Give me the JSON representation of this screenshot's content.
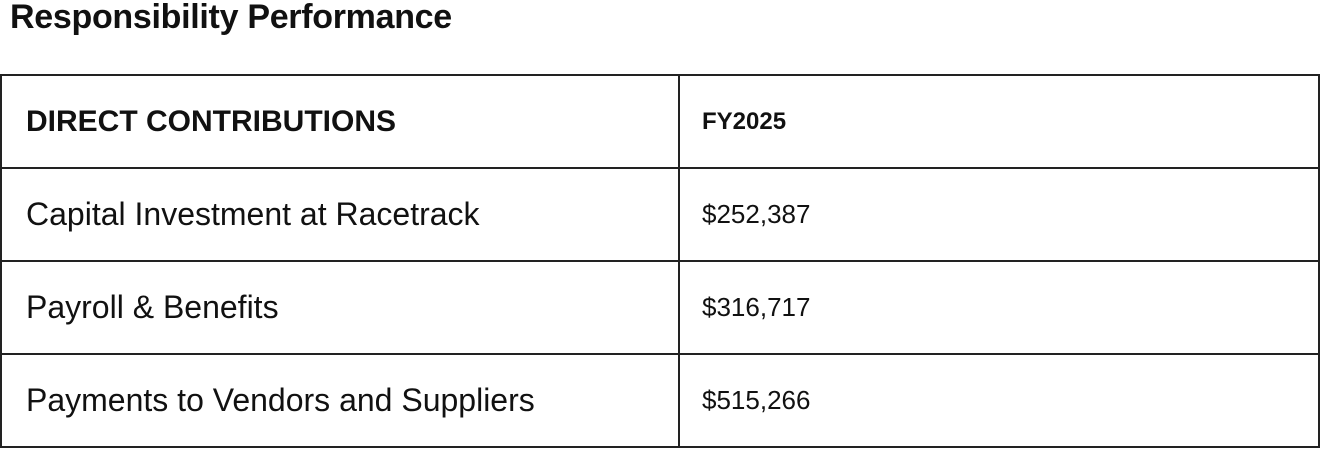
{
  "title": "Responsibility Performance",
  "table": {
    "headers": [
      "DIRECT CONTRIBUTIONS",
      "FY2025"
    ],
    "rows": [
      [
        "Capital Investment at Racetrack",
        "$252,387"
      ],
      [
        "Payroll & Benefits",
        "$316,717"
      ],
      [
        "Payments to Vendors and Suppliers",
        "$515,266"
      ]
    ]
  }
}
